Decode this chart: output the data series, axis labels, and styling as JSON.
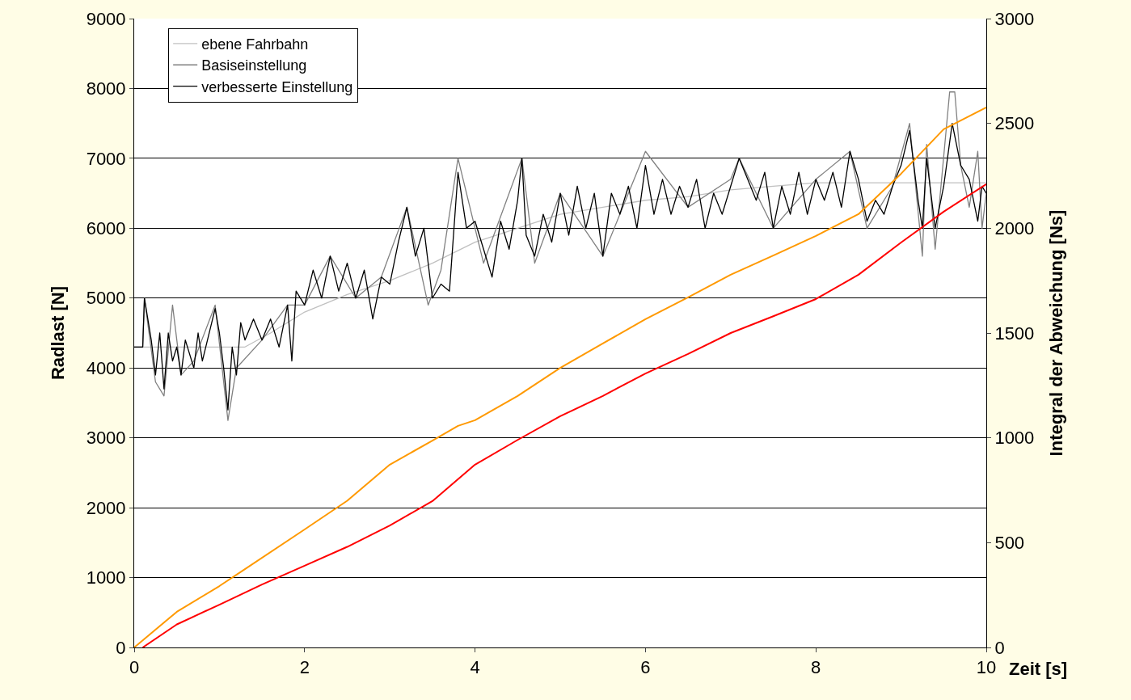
{
  "chart_data": {
    "type": "line",
    "xlabel": "Zeit [s]",
    "ylabel": "Radlast [N]",
    "y2label": "Integral der Abweichung [Ns]",
    "xlim": [
      0,
      10
    ],
    "xticks": [
      0,
      2,
      4,
      6,
      8,
      10
    ],
    "ylim": [
      0,
      9000
    ],
    "yticks": [
      0,
      1000,
      2000,
      3000,
      4000,
      5000,
      6000,
      7000,
      8000,
      9000
    ],
    "y2lim": [
      0,
      3000
    ],
    "y2ticks": [
      0,
      500,
      1000,
      1500,
      2000,
      2500,
      3000
    ],
    "grid": "y",
    "legend": "top left",
    "marker": "none",
    "line_style": "solid",
    "series": [
      {
        "name": "ebene Fahrbahn",
        "color": "#c0c0c0",
        "x": [
          0,
          0.5,
          1.0,
          1.3,
          1.6,
          2.0,
          2.5,
          3.0,
          3.5,
          4.0,
          4.5,
          5.0,
          5.5,
          6.0,
          6.5,
          7.0,
          7.5,
          8.0,
          9.0,
          10.0
        ],
        "values": [
          4300,
          4300,
          4300,
          4300,
          4500,
          4800,
          5050,
          5250,
          5500,
          5800,
          6000,
          6200,
          6300,
          6400,
          6450,
          6550,
          6600,
          6650,
          6650,
          6650
        ]
      },
      {
        "name": "Basiseinstellung",
        "color": "#808080",
        "x": [
          0,
          0.1,
          0.12,
          0.25,
          0.35,
          0.45,
          0.55,
          0.7,
          0.95,
          1.1,
          1.2,
          1.5,
          1.8,
          2.0,
          2.3,
          2.6,
          2.9,
          3.2,
          3.45,
          3.6,
          3.8,
          4.1,
          4.55,
          4.7,
          5.0,
          5.5,
          6.0,
          6.5,
          7.0,
          7.1,
          7.5,
          8.0,
          8.4,
          8.6,
          8.9,
          9.1,
          9.25,
          9.3,
          9.4,
          9.57,
          9.63,
          9.7,
          9.8,
          9.9,
          9.95,
          10.0
        ],
        "values": [
          4300,
          4300,
          5000,
          3800,
          3600,
          4900,
          3900,
          4100,
          4900,
          3250,
          4000,
          4400,
          4900,
          4900,
          5600,
          5000,
          5300,
          6300,
          4900,
          5400,
          7000,
          5500,
          7000,
          5500,
          6500,
          5600,
          7100,
          6300,
          6700,
          7000,
          6000,
          6700,
          7100,
          6000,
          6600,
          7500,
          5600,
          7200,
          5700,
          7950,
          7950,
          6900,
          6300,
          7100,
          6000,
          6500
        ]
      },
      {
        "name": "verbesserte Einstellung",
        "color": "#000000",
        "x": [
          0,
          0.1,
          0.12,
          0.2,
          0.25,
          0.3,
          0.35,
          0.4,
          0.45,
          0.5,
          0.55,
          0.6,
          0.7,
          0.75,
          0.8,
          0.9,
          0.95,
          1.0,
          1.05,
          1.1,
          1.15,
          1.2,
          1.25,
          1.3,
          1.4,
          1.5,
          1.6,
          1.7,
          1.8,
          1.85,
          1.9,
          2.0,
          2.1,
          2.2,
          2.3,
          2.4,
          2.5,
          2.6,
          2.7,
          2.8,
          2.9,
          3.0,
          3.1,
          3.2,
          3.3,
          3.4,
          3.5,
          3.6,
          3.7,
          3.8,
          3.9,
          4.0,
          4.1,
          4.2,
          4.3,
          4.4,
          4.5,
          4.55,
          4.6,
          4.7,
          4.8,
          4.9,
          5.0,
          5.1,
          5.2,
          5.3,
          5.4,
          5.5,
          5.6,
          5.7,
          5.8,
          5.9,
          6.0,
          6.1,
          6.2,
          6.3,
          6.4,
          6.5,
          6.6,
          6.7,
          6.8,
          6.9,
          7.0,
          7.1,
          7.2,
          7.3,
          7.4,
          7.5,
          7.6,
          7.7,
          7.8,
          7.9,
          8.0,
          8.1,
          8.2,
          8.3,
          8.4,
          8.5,
          8.6,
          8.7,
          8.8,
          8.9,
          9.0,
          9.1,
          9.2,
          9.25,
          9.3,
          9.4,
          9.5,
          9.6,
          9.7,
          9.8,
          9.9,
          9.95,
          10.0
        ],
        "values": [
          4300,
          4300,
          5000,
          4400,
          3900,
          4500,
          3700,
          4500,
          4100,
          4300,
          3900,
          4400,
          4000,
          4500,
          4100,
          4600,
          4850,
          4500,
          4000,
          3400,
          4300,
          3900,
          4650,
          4400,
          4700,
          4400,
          4700,
          4300,
          4900,
          4100,
          5100,
          4900,
          5400,
          5000,
          5600,
          5100,
          5500,
          5000,
          5400,
          4700,
          5300,
          5200,
          5800,
          6300,
          5600,
          6000,
          5000,
          5200,
          5100,
          6800,
          6000,
          6100,
          5700,
          5300,
          6100,
          5700,
          6400,
          7000,
          5900,
          5600,
          6200,
          5800,
          6500,
          5900,
          6600,
          6000,
          6500,
          5600,
          6500,
          6200,
          6600,
          6000,
          6900,
          6200,
          6700,
          6200,
          6600,
          6300,
          6700,
          6000,
          6500,
          6200,
          6600,
          7000,
          6700,
          6400,
          6800,
          6000,
          6600,
          6200,
          6800,
          6200,
          6700,
          6400,
          6800,
          6300,
          7100,
          6700,
          6100,
          6400,
          6200,
          6600,
          6900,
          7400,
          6400,
          6000,
          7000,
          6000,
          6600,
          7500,
          6900,
          6700,
          6100,
          6600,
          6500
        ]
      },
      {
        "color": "#ff9900",
        "axis": "y2",
        "x": [
          0,
          0.5,
          1.0,
          1.26,
          2.0,
          2.5,
          3.0,
          3.5,
          3.8,
          4.0,
          4.5,
          5.0,
          5.5,
          6.0,
          6.5,
          7.0,
          7.5,
          8.0,
          8.5,
          9.0,
          9.5,
          10.0
        ],
        "values": [
          0,
          170,
          293,
          363,
          563,
          700,
          872,
          987,
          1057,
          1084,
          1200,
          1334,
          1450,
          1566,
          1670,
          1778,
          1870,
          1963,
          2067,
          2260,
          2472,
          2576
        ]
      },
      {
        "color": "#ff0000",
        "axis": "y2",
        "x": [
          0.1,
          0.5,
          1.0,
          1.5,
          2.0,
          2.5,
          3.0,
          3.5,
          4.0,
          4.5,
          5.0,
          5.5,
          6.0,
          6.5,
          7.0,
          7.5,
          8.0,
          8.5,
          9.0,
          9.5,
          10.0
        ],
        "values": [
          0,
          110,
          204,
          300,
          390,
          480,
          582,
          698,
          872,
          990,
          1103,
          1200,
          1307,
          1400,
          1500,
          1580,
          1662,
          1778,
          1932,
          2079,
          2210
        ]
      }
    ]
  }
}
